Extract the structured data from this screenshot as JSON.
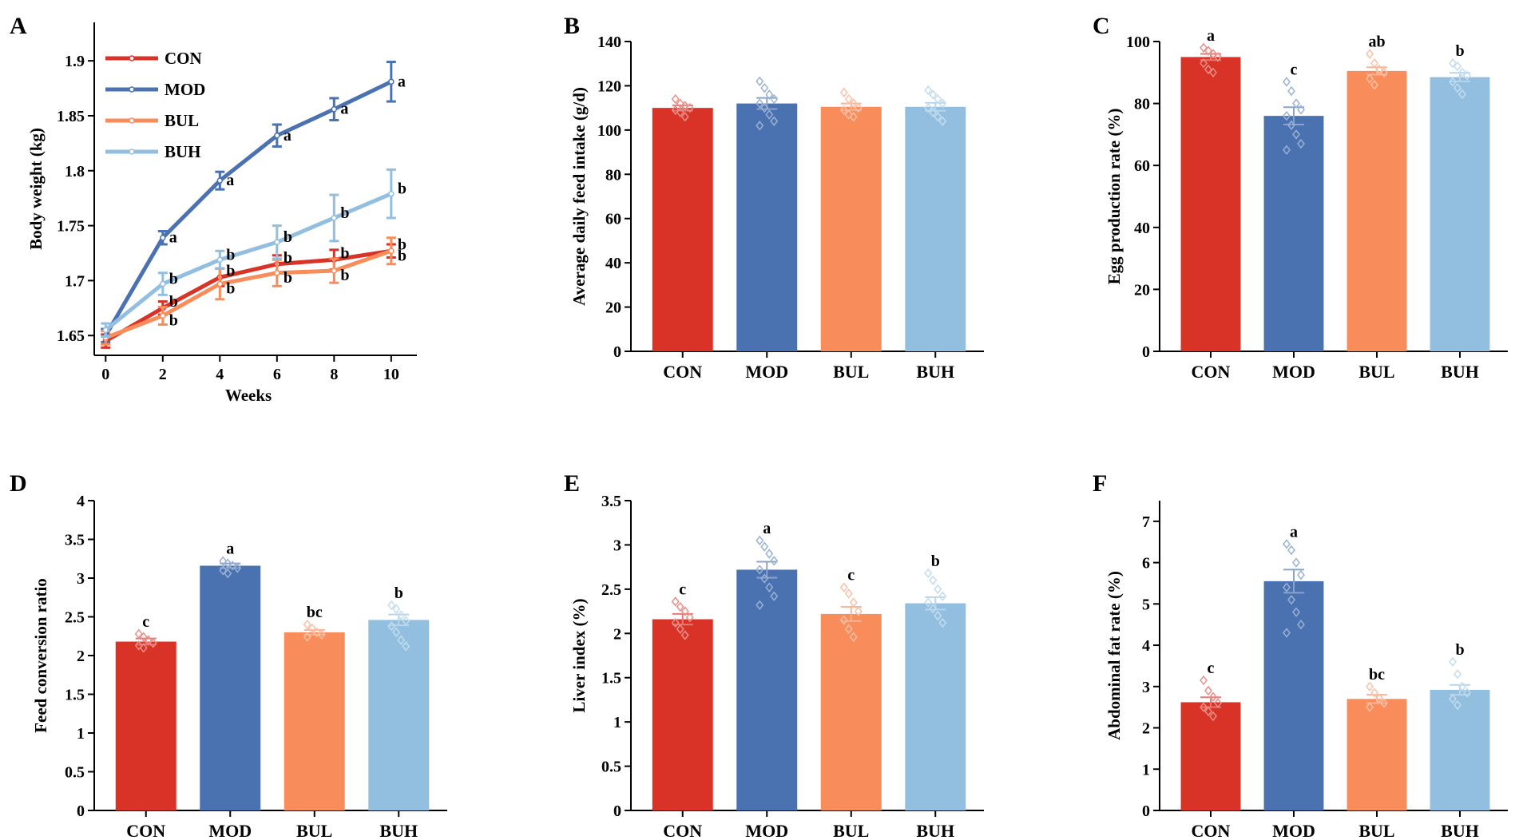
{
  "colors": {
    "CON": "#d93327",
    "MOD": "#4a72b0",
    "BUL": "#f98c5b",
    "BUH": "#92bfe0"
  },
  "chart_data": [
    {
      "id": "A",
      "panel": "A",
      "type": "line",
      "title": "",
      "xlabel": "Weeks",
      "ylabel": "Body weight (kg)",
      "x": [
        0,
        2,
        4,
        6,
        8,
        10
      ],
      "xlim": [
        -0.4,
        10.9
      ],
      "ylim": [
        1.632,
        1.935
      ],
      "yticks": [
        1.65,
        1.7,
        1.75,
        1.8,
        1.85,
        1.9
      ],
      "ytick_labels": [
        "1.65",
        "1.70",
        "1.75",
        "1.80",
        "1.85",
        "1.90"
      ],
      "xticks": [
        0,
        2,
        4,
        6,
        8,
        10
      ],
      "xtick_labels": [
        "0",
        "2",
        "4",
        "6",
        "8",
        "10"
      ],
      "legend_position": "top-left",
      "series": [
        {
          "name": "CON",
          "values": [
            1.645,
            1.675,
            1.703,
            1.715,
            1.719,
            1.727
          ],
          "errors": [
            0.006,
            0.006,
            0.008,
            0.008,
            0.009,
            0.006
          ],
          "labels": [
            "",
            "b",
            "b",
            "b",
            "b",
            "b"
          ]
        },
        {
          "name": "MOD",
          "values": [
            1.65,
            1.739,
            1.791,
            1.832,
            1.856,
            1.881
          ],
          "errors": [
            0.006,
            0.006,
            0.008,
            0.01,
            0.01,
            0.018
          ],
          "labels": [
            "",
            "a",
            "a",
            "a",
            "a",
            "a"
          ]
        },
        {
          "name": "BUL",
          "values": [
            1.648,
            1.668,
            1.697,
            1.707,
            1.709,
            1.727
          ],
          "errors": [
            0.006,
            0.008,
            0.014,
            0.012,
            0.011,
            0.012
          ],
          "labels": [
            "",
            "b",
            "b",
            "b",
            "b",
            "b"
          ]
        },
        {
          "name": "BUH",
          "values": [
            1.655,
            1.697,
            1.719,
            1.735,
            1.757,
            1.779
          ],
          "errors": [
            0.006,
            0.01,
            0.008,
            0.015,
            0.021,
            0.022
          ],
          "labels": [
            "",
            "b",
            "b",
            "b",
            "b",
            "b"
          ]
        }
      ]
    },
    {
      "id": "B",
      "panel": "B",
      "type": "bar",
      "title": "",
      "xlabel": "",
      "ylabel": "Average daily feed intake (g/d)",
      "categories": [
        "CON",
        "MOD",
        "BUL",
        "BUH"
      ],
      "values": [
        110,
        112,
        110.5,
        110.5
      ],
      "errors": [
        1.2,
        2.5,
        1.5,
        1.8
      ],
      "labels": [
        "",
        "",
        "",
        ""
      ],
      "points": [
        [
          114,
          112,
          111,
          110,
          109,
          108,
          106
        ],
        [
          122,
          119,
          116,
          114,
          112,
          110,
          107,
          104,
          102
        ],
        [
          117,
          114,
          112,
          110,
          109,
          107,
          106
        ],
        [
          118,
          116,
          114,
          112,
          110,
          108,
          106,
          104
        ]
      ],
      "ylim": [
        0,
        140
      ],
      "yticks": [
        0,
        20,
        40,
        60,
        80,
        100,
        120,
        140
      ],
      "ytick_labels": [
        "0",
        "20",
        "40",
        "60",
        "80",
        "100",
        "120",
        "140"
      ]
    },
    {
      "id": "C",
      "panel": "C",
      "type": "bar",
      "title": "",
      "xlabel": "",
      "ylabel": "Egg production rate (%)",
      "categories": [
        "CON",
        "MOD",
        "BUL",
        "BUH"
      ],
      "values": [
        95,
        76,
        90.5,
        88.5
      ],
      "errors": [
        1.0,
        2.8,
        1.2,
        1.4
      ],
      "labels": [
        "a",
        "c",
        "ab",
        "b"
      ],
      "points": [
        [
          98,
          97,
          96,
          95,
          93,
          91,
          90
        ],
        [
          87,
          84,
          80,
          78,
          76,
          73,
          70,
          67,
          65
        ],
        [
          96,
          93,
          91,
          90,
          88,
          86
        ],
        [
          93,
          92,
          90,
          89,
          87,
          85,
          83
        ]
      ],
      "ylim": [
        0,
        100
      ],
      "yticks": [
        0,
        20,
        40,
        60,
        80,
        100
      ],
      "ytick_labels": [
        "0",
        "20",
        "40",
        "60",
        "80",
        "100"
      ]
    },
    {
      "id": "D",
      "panel": "D",
      "type": "bar",
      "title": "",
      "xlabel": "",
      "ylabel": "Feed conversion ratio",
      "categories": [
        "CON",
        "MOD",
        "BUL",
        "BUH"
      ],
      "values": [
        2.18,
        3.16,
        2.3,
        2.46
      ],
      "errors": [
        0.04,
        0.03,
        0.03,
        0.07
      ],
      "labels": [
        "c",
        "a",
        "bc",
        "b"
      ],
      "points": [
        [
          2.28,
          2.24,
          2.2,
          2.16,
          2.13,
          2.1
        ],
        [
          3.22,
          3.19,
          3.16,
          3.13,
          3.1,
          3.06
        ],
        [
          2.4,
          2.35,
          2.3,
          2.27,
          2.24
        ],
        [
          2.65,
          2.6,
          2.52,
          2.45,
          2.38,
          2.3,
          2.2,
          2.12
        ]
      ],
      "ylim": [
        0,
        4.0
      ],
      "yticks": [
        0,
        0.5,
        1.0,
        1.5,
        2.0,
        2.5,
        3.0,
        3.5,
        4.0
      ],
      "ytick_labels": [
        "0.0",
        "0.5",
        "1.0",
        "1.5",
        "2.0",
        "2.5",
        "3.0",
        "3.5",
        "4.0"
      ]
    },
    {
      "id": "E",
      "panel": "E",
      "type": "bar",
      "title": "",
      "xlabel": "",
      "ylabel": "Liver index (%)",
      "categories": [
        "CON",
        "MOD",
        "BUL",
        "BUH"
      ],
      "values": [
        2.16,
        2.72,
        2.22,
        2.34
      ],
      "errors": [
        0.06,
        0.09,
        0.08,
        0.07
      ],
      "labels": [
        "c",
        "a",
        "c",
        "b"
      ],
      "points": [
        [
          2.36,
          2.3,
          2.25,
          2.18,
          2.12,
          2.05,
          1.98
        ],
        [
          3.05,
          2.98,
          2.9,
          2.82,
          2.72,
          2.62,
          2.52,
          2.42,
          2.32
        ],
        [
          2.52,
          2.45,
          2.35,
          2.25,
          2.15,
          2.05,
          1.96
        ],
        [
          2.68,
          2.6,
          2.5,
          2.42,
          2.35,
          2.28,
          2.2,
          2.12
        ]
      ],
      "ylim": [
        0,
        3.5
      ],
      "yticks": [
        0,
        0.5,
        1.0,
        1.5,
        2.0,
        2.5,
        3.0,
        3.5
      ],
      "ytick_labels": [
        "0.0",
        "0.5",
        "1.0",
        "1.5",
        "2.0",
        "2.5",
        "3.0",
        "3.5"
      ]
    },
    {
      "id": "F",
      "panel": "F",
      "type": "bar",
      "title": "",
      "xlabel": "",
      "ylabel": "Abdominal fat rate (%)",
      "categories": [
        "CON",
        "MOD",
        "BUL",
        "BUH"
      ],
      "values": [
        2.62,
        5.55,
        2.7,
        2.92
      ],
      "errors": [
        0.12,
        0.28,
        0.1,
        0.12
      ],
      "labels": [
        "c",
        "a",
        "bc",
        "b"
      ],
      "points": [
        [
          3.15,
          2.9,
          2.75,
          2.6,
          2.5,
          2.4,
          2.28
        ],
        [
          6.45,
          6.3,
          6.0,
          5.7,
          5.4,
          5.1,
          4.8,
          4.5,
          4.3
        ],
        [
          3.0,
          2.85,
          2.72,
          2.6,
          2.5
        ],
        [
          3.6,
          3.3,
          3.0,
          2.85,
          2.7,
          2.55
        ]
      ],
      "ylim": [
        0,
        7.5
      ],
      "yticks": [
        0,
        1,
        2,
        3,
        4,
        5,
        6,
        7
      ],
      "ytick_labels": [
        "0",
        "1",
        "2",
        "3",
        "4",
        "5",
        "6",
        "7"
      ]
    }
  ]
}
